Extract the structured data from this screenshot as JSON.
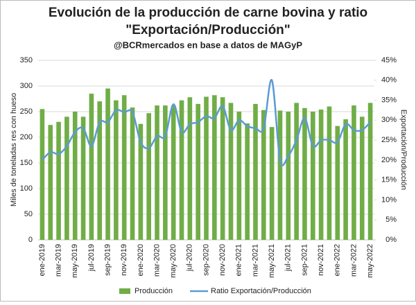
{
  "chart_data": {
    "type": "bar_line",
    "title": "Evolución de la producción de carne bovina y ratio",
    "title2": "\"Exportación/Producción\"",
    "subtitle": "@BCRmercados en base a datos de MAGyP",
    "ylabel": "Miles de toneladas res con hueso",
    "y2label": "Exportación/Producción",
    "categories": [
      "ene-2019",
      null,
      "mar-2019",
      null,
      "may-2019",
      null,
      "jul-2019",
      null,
      "sep-2019",
      null,
      "nov-2019",
      null,
      "ene-2020",
      null,
      "mar-2020",
      null,
      "may-2020",
      null,
      "jul-2020",
      null,
      "sep-2020",
      null,
      "nov-2020",
      null,
      "ene-2021",
      null,
      "mar-2021",
      null,
      "may-2021",
      null,
      "jul-2021",
      null,
      "sep-2021",
      null,
      "nov-2021",
      null,
      "ene-2022",
      null,
      "mar-2022",
      null,
      "may-2022"
    ],
    "series": [
      {
        "name": "Producción",
        "color": "#70ad47",
        "type": "bar",
        "values": [
          255,
          224,
          230,
          240,
          250,
          240,
          285,
          270,
          295,
          272,
          282,
          258,
          226,
          247,
          262,
          262,
          262,
          272,
          278,
          265,
          279,
          282,
          278,
          267,
          250,
          227,
          265,
          253,
          220,
          252,
          250,
          267,
          257,
          250,
          254,
          260,
          222,
          235,
          262,
          240,
          267
        ]
      },
      {
        "name": "Ratio Exportación/Producción",
        "color": "#5b9bd5",
        "type": "line",
        "axis": "y2",
        "values": [
          20,
          22,
          21.5,
          23.5,
          27,
          28,
          23.5,
          29.5,
          29.5,
          32.5,
          32,
          32,
          24.5,
          23,
          26,
          26,
          34,
          27,
          29,
          29.5,
          31,
          30.5,
          33.5,
          27.5,
          30,
          28.5,
          28,
          28,
          40,
          20,
          21,
          25,
          30.5,
          23.5,
          25,
          25,
          24.5,
          29,
          27.5,
          27.5,
          29.5
        ]
      }
    ],
    "ylim": [
      0,
      350
    ],
    "yticks": [
      0,
      50,
      100,
      150,
      200,
      250,
      300,
      350
    ],
    "y2lim": [
      0,
      45
    ],
    "y2ticks": [
      {
        "value": 0,
        "label": "0%"
      },
      {
        "value": 5,
        "label": "5%"
      },
      {
        "value": 10,
        "label": "10%"
      },
      {
        "value": 15,
        "label": "15%"
      },
      {
        "value": 20,
        "label": "20%"
      },
      {
        "value": 25,
        "label": "25%"
      },
      {
        "value": 30,
        "label": "30%"
      },
      {
        "value": 35,
        "label": "35%"
      },
      {
        "value": 40,
        "label": "40%"
      },
      {
        "value": 45,
        "label": "45%"
      }
    ],
    "grid": true,
    "legend": "bottom"
  }
}
